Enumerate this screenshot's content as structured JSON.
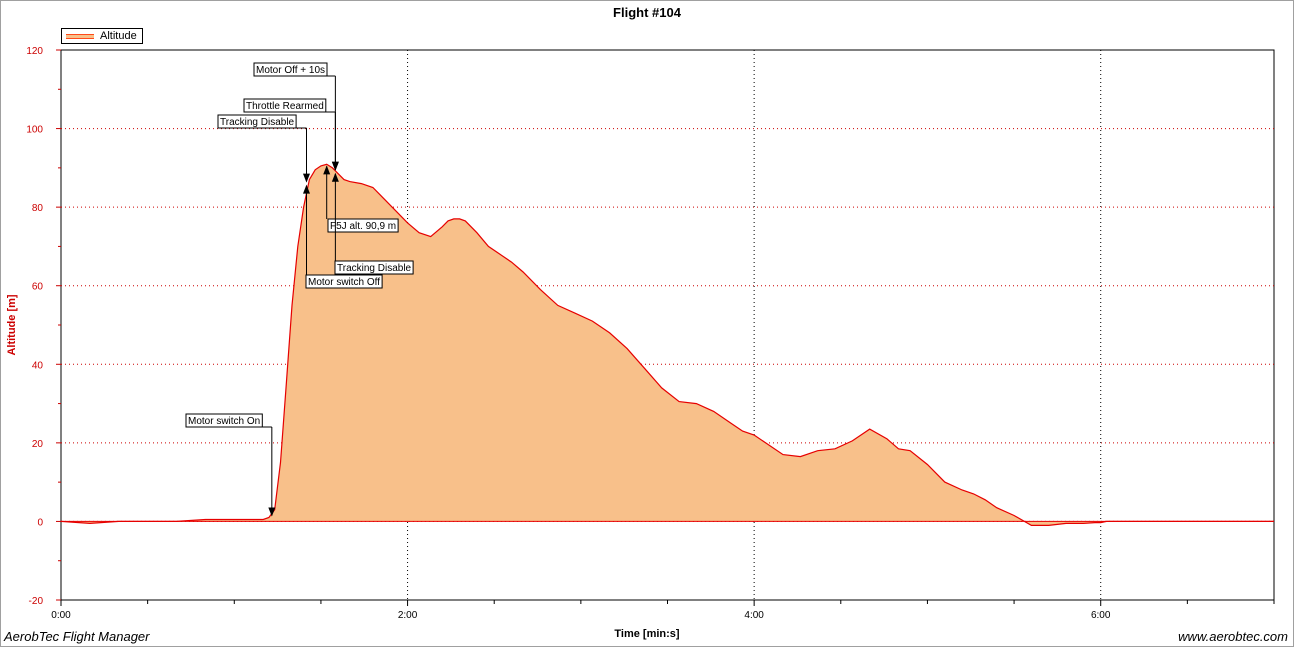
{
  "chart_data": {
    "type": "area",
    "title": "Flight #104",
    "xlabel": "Time [min:s]",
    "ylabel": "Altitude [m]",
    "x_unit": "seconds",
    "xlim": [
      0,
      420
    ],
    "ylim": [
      -20,
      120
    ],
    "y_ticks": [
      -20,
      0,
      20,
      40,
      60,
      80,
      100,
      120
    ],
    "x_ticks": [
      0,
      120,
      240,
      360
    ],
    "x_tick_labels": [
      "0:00",
      "2:00",
      "4:00",
      "6:00"
    ],
    "grid": true,
    "legend_position": "top-left",
    "colors": {
      "fill": "#f8c08a",
      "line": "#e60000",
      "axis": "#cc0000"
    },
    "series": [
      {
        "name": "Altitude",
        "x": [
          0,
          10,
          20,
          30,
          40,
          50,
          60,
          70,
          72,
          74,
          76,
          78,
          80,
          82,
          84,
          86,
          88,
          90,
          92,
          94,
          96,
          98,
          100,
          104,
          108,
          112,
          116,
          120,
          124,
          128,
          132,
          134,
          136,
          138,
          140,
          144,
          148,
          152,
          156,
          160,
          166,
          172,
          178,
          184,
          190,
          196,
          202,
          208,
          214,
          220,
          226,
          232,
          236,
          240,
          244,
          250,
          256,
          262,
          268,
          274,
          280,
          286,
          290,
          294,
          300,
          306,
          312,
          316,
          320,
          324,
          330,
          336,
          342,
          348,
          354,
          358,
          360,
          362,
          364,
          368,
          372,
          380,
          390,
          400,
          410,
          420
        ],
        "y": [
          0,
          -0.5,
          0,
          0,
          0,
          0.5,
          0.5,
          0.5,
          1,
          3,
          15,
          35,
          55,
          70,
          80,
          87,
          89.5,
          90.5,
          90.9,
          90,
          88.5,
          87,
          86.5,
          86,
          85,
          82,
          79,
          76,
          73.5,
          72.5,
          75,
          76.5,
          77,
          77,
          76.5,
          73.5,
          70,
          68,
          66,
          63.5,
          59,
          55,
          53,
          51,
          48,
          44,
          39,
          34,
          30.5,
          30,
          28,
          25,
          23,
          22,
          20,
          17,
          16.5,
          18,
          18.5,
          20.5,
          23.5,
          21,
          18.5,
          18,
          14.5,
          10,
          8,
          7,
          5.5,
          3.5,
          1.5,
          -1,
          -1,
          -0.5,
          -0.5,
          -0.3,
          -0.3,
          0,
          0,
          0,
          0,
          0,
          0,
          0,
          0,
          0
        ]
      }
    ],
    "annotations": [
      {
        "label": "Motor switch On",
        "x": 73,
        "y": 1,
        "direction": "down"
      },
      {
        "label": "Tracking Disable",
        "x": 85,
        "y": 86,
        "direction": "down"
      },
      {
        "label": "Motor switch Off",
        "x": 85,
        "y": 86,
        "direction": "up"
      },
      {
        "label": "F5J alt. 90,9 m",
        "x": 92,
        "y": 90.9,
        "direction": "up"
      },
      {
        "label": "Throttle Rearmed",
        "x": 95,
        "y": 89,
        "direction": "down"
      },
      {
        "label": "Tracking Disable",
        "x": 95,
        "y": 89,
        "direction": "up"
      },
      {
        "label": "Motor Off + 10s",
        "x": 95,
        "y": 89,
        "direction": "down"
      }
    ]
  },
  "footer": {
    "left": "AerobTec Flight Manager",
    "right": "www.aerobtec.com"
  }
}
